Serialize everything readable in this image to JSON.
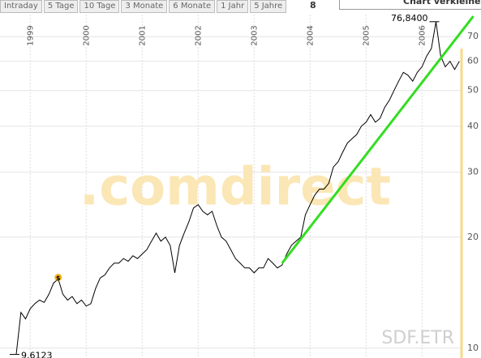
{
  "tabs": [
    "Intraday",
    "5 Tage",
    "10 Tage",
    "3 Monate",
    "6 Monate",
    "1 Jahr",
    "5 Jahre"
  ],
  "tab_extra": "8",
  "button": "Chart verkleinern",
  "chart_data": {
    "type": "line",
    "color": "#000000",
    "log_y": true,
    "grid": true,
    "watermark": ".comdirect",
    "symbol": "SDF.ETR",
    "categories": [
      null,
      null,
      null,
      "1999",
      null,
      null,
      null,
      null,
      null,
      null,
      null,
      null,
      null,
      null,
      null,
      "2000",
      null,
      null,
      null,
      null,
      null,
      null,
      null,
      null,
      null,
      null,
      null,
      "2001",
      null,
      null,
      null,
      null,
      null,
      null,
      null,
      null,
      null,
      null,
      null,
      "2002",
      null,
      null,
      null,
      null,
      null,
      null,
      null,
      null,
      null,
      null,
      null,
      "2003",
      null,
      null,
      null,
      null,
      null,
      null,
      null,
      null,
      null,
      null,
      null,
      "2004",
      null,
      null,
      null,
      null,
      null,
      null,
      null,
      null,
      null,
      null,
      null,
      "2005",
      null,
      null,
      null,
      null,
      null,
      null,
      null,
      null,
      null,
      null,
      null,
      "2006",
      null,
      null,
      null,
      null,
      null,
      null,
      null,
      null
    ],
    "values": [
      9.6123,
      12.5,
      12,
      12.8,
      13.2,
      13.5,
      13.3,
      14,
      15,
      15.4,
      14,
      13.5,
      13.8,
      13.2,
      13.5,
      13,
      13.2,
      14.5,
      15.5,
      15.8,
      16.5,
      17,
      17,
      17.5,
      17.2,
      17.8,
      17.5,
      18,
      18.5,
      19.5,
      20.5,
      19.5,
      20,
      19,
      16,
      19,
      20.5,
      22,
      24,
      24.5,
      23.5,
      23,
      23.5,
      21.5,
      20,
      19.5,
      18.5,
      17.5,
      17,
      16.5,
      16.5,
      16,
      16.5,
      16.5,
      17.5,
      17,
      16.5,
      16.8,
      18,
      19,
      19.5,
      20,
      23,
      24.5,
      26,
      27,
      27,
      28,
      31,
      32,
      34,
      36,
      37,
      38,
      40,
      41,
      43,
      41,
      42,
      45,
      47,
      50,
      53,
      56,
      55,
      53,
      56,
      58,
      62,
      65,
      76.84,
      62,
      58,
      60,
      57,
      60
    ],
    "ylim": [
      9.4,
      88
    ],
    "yticks": [
      10,
      20,
      30,
      40,
      50,
      60,
      70
    ],
    "annotations": [
      {
        "label": "76,8400",
        "value": 76.84
      },
      {
        "label": "9,6123",
        "value": 9.6123
      }
    ],
    "dividend_marker": {
      "label": "$",
      "index": 9
    },
    "trendline": {
      "color": "#33dd22",
      "x": [
        57,
        98
      ],
      "values": [
        17,
        79.5
      ]
    }
  }
}
